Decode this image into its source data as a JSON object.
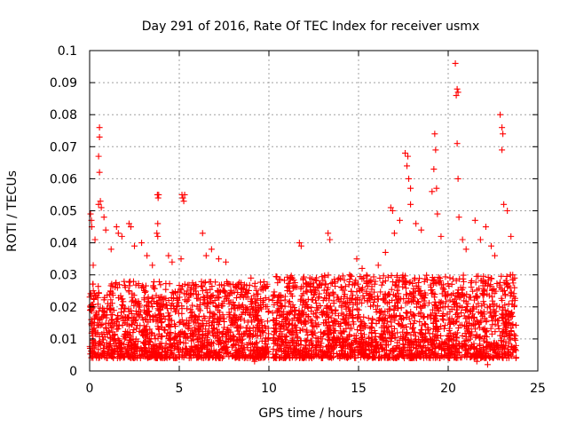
{
  "chart_data": {
    "type": "scatter",
    "title": "Day 291 of 2016, Rate Of TEC Index for receiver usmx",
    "xlabel": "GPS time / hours",
    "ylabel": "ROTI / TECUs",
    "xlim": [
      0,
      25
    ],
    "ylim": [
      0,
      0.1
    ],
    "xticks": [
      0,
      5,
      10,
      15,
      20,
      25
    ],
    "xtick_labels": [
      "0",
      "5",
      "10",
      "15",
      "20",
      "25"
    ],
    "yticks": [
      0,
      0.01,
      0.02,
      0.03,
      0.04,
      0.05,
      0.06,
      0.07,
      0.08,
      0.09,
      0.1
    ],
    "ytick_labels": [
      "0",
      "0.01",
      "0.02",
      "0.03",
      "0.04",
      "0.05",
      "0.06",
      "0.07",
      "0.08",
      "0.09",
      "0.1"
    ],
    "grid": true,
    "marker": "+",
    "marker_color": "#ff0000",
    "series": [
      {
        "name": "ROTI",
        "points": [
          [
            0.05,
            0.049
          ],
          [
            0.1,
            0.047
          ],
          [
            0.12,
            0.045
          ],
          [
            0.2,
            0.033
          ],
          [
            0.3,
            0.041
          ],
          [
            0.55,
            0.076
          ],
          [
            0.55,
            0.073
          ],
          [
            0.5,
            0.067
          ],
          [
            0.55,
            0.062
          ],
          [
            0.6,
            0.053
          ],
          [
            0.65,
            0.051
          ],
          [
            0.5,
            0.052
          ],
          [
            0.8,
            0.048
          ],
          [
            0.9,
            0.044
          ],
          [
            1.2,
            0.038
          ],
          [
            1.5,
            0.045
          ],
          [
            1.6,
            0.043
          ],
          [
            1.8,
            0.042
          ],
          [
            2.2,
            0.046
          ],
          [
            2.3,
            0.045
          ],
          [
            2.5,
            0.039
          ],
          [
            2.9,
            0.04
          ],
          [
            3.2,
            0.036
          ],
          [
            3.5,
            0.033
          ],
          [
            3.78,
            0.055
          ],
          [
            3.82,
            0.054
          ],
          [
            3.85,
            0.055
          ],
          [
            3.8,
            0.046
          ],
          [
            3.75,
            0.043
          ],
          [
            3.8,
            0.042
          ],
          [
            4.4,
            0.036
          ],
          [
            4.6,
            0.034
          ],
          [
            5.15,
            0.055
          ],
          [
            5.2,
            0.054
          ],
          [
            5.25,
            0.053
          ],
          [
            5.3,
            0.055
          ],
          [
            5.1,
            0.035
          ],
          [
            6.3,
            0.043
          ],
          [
            6.5,
            0.036
          ],
          [
            6.8,
            0.038
          ],
          [
            7.2,
            0.035
          ],
          [
            7.6,
            0.034
          ],
          [
            8.0,
            0.027
          ],
          [
            8.5,
            0.026
          ],
          [
            9.0,
            0.029
          ],
          [
            9.4,
            0.024
          ],
          [
            9.7,
            0.022
          ],
          [
            11.7,
            0.04
          ],
          [
            11.8,
            0.039
          ],
          [
            12.2,
            0.027
          ],
          [
            12.6,
            0.025
          ],
          [
            13.3,
            0.043
          ],
          [
            13.4,
            0.041
          ],
          [
            13.9,
            0.029
          ],
          [
            14.5,
            0.03
          ],
          [
            14.9,
            0.035
          ],
          [
            15.2,
            0.032
          ],
          [
            15.6,
            0.028
          ],
          [
            16.1,
            0.033
          ],
          [
            16.5,
            0.037
          ],
          [
            16.8,
            0.051
          ],
          [
            16.9,
            0.05
          ],
          [
            17.0,
            0.043
          ],
          [
            17.3,
            0.047
          ],
          [
            17.6,
            0.068
          ],
          [
            17.7,
            0.064
          ],
          [
            17.8,
            0.06
          ],
          [
            17.9,
            0.057
          ],
          [
            17.75,
            0.067
          ],
          [
            17.9,
            0.052
          ],
          [
            18.2,
            0.046
          ],
          [
            18.5,
            0.044
          ],
          [
            19.1,
            0.056
          ],
          [
            19.2,
            0.063
          ],
          [
            19.3,
            0.069
          ],
          [
            19.25,
            0.074
          ],
          [
            19.35,
            0.057
          ],
          [
            19.4,
            0.049
          ],
          [
            19.6,
            0.042
          ],
          [
            20.4,
            0.096
          ],
          [
            20.5,
            0.088
          ],
          [
            20.55,
            0.087
          ],
          [
            20.45,
            0.086
          ],
          [
            20.5,
            0.071
          ],
          [
            20.55,
            0.06
          ],
          [
            20.6,
            0.048
          ],
          [
            20.8,
            0.041
          ],
          [
            21.0,
            0.038
          ],
          [
            21.5,
            0.047
          ],
          [
            21.8,
            0.041
          ],
          [
            22.1,
            0.045
          ],
          [
            22.4,
            0.039
          ],
          [
            22.6,
            0.036
          ],
          [
            22.9,
            0.08
          ],
          [
            23.0,
            0.076
          ],
          [
            23.05,
            0.074
          ],
          [
            23.0,
            0.069
          ],
          [
            23.1,
            0.052
          ],
          [
            23.3,
            0.05
          ],
          [
            23.5,
            0.042
          ],
          [
            23.6,
            0.03
          ],
          [
            23.7,
            0.026
          ],
          [
            22.5,
            0.004
          ],
          [
            22.2,
            0.002
          ],
          [
            21.6,
            0.003
          ],
          [
            9.2,
            0.003
          ],
          [
            4.7,
            0.004
          ],
          [
            0.7,
            0.005
          ],
          [
            15.8,
            0.004
          ],
          [
            19.8,
            0.005
          ]
        ]
      }
    ],
    "dense_bands": [
      {
        "x_start": 0.0,
        "x_end": 10.0,
        "y_low": 0.004,
        "y_high": 0.028
      },
      {
        "x_start": 10.2,
        "x_end": 23.8,
        "y_low": 0.004,
        "y_high": 0.03
      }
    ]
  }
}
